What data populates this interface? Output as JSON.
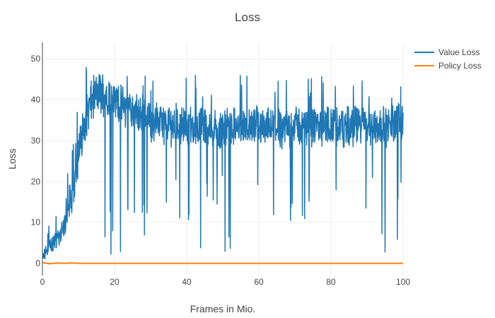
{
  "chart_data": {
    "type": "line",
    "title": "Loss",
    "xlabel": "Frames in Mio.",
    "ylabel": "Loss",
    "xlim": [
      0,
      100
    ],
    "ylim": [
      -3,
      54
    ],
    "xticks": [
      0,
      20,
      40,
      60,
      80,
      100
    ],
    "yticks": [
      0,
      10,
      20,
      30,
      40,
      50
    ],
    "grid": true,
    "legend_position": "top-right",
    "series": [
      {
        "name": "Value Loss",
        "color": "#1f77b4",
        "x": [
          0,
          1,
          2,
          3,
          4,
          5,
          6,
          7,
          8,
          9,
          10,
          11,
          12,
          13,
          14,
          15,
          16,
          17,
          18,
          19,
          20,
          21,
          22,
          23,
          24,
          25,
          26,
          27,
          28,
          29,
          30,
          32,
          34,
          36,
          38,
          40,
          42,
          44,
          46,
          48,
          50,
          52,
          54,
          56,
          58,
          60,
          62,
          64,
          66,
          68,
          70,
          72,
          74,
          76,
          78,
          80,
          82,
          84,
          86,
          88,
          90,
          92,
          94,
          96,
          98,
          100
        ],
        "y": [
          1,
          3,
          4,
          5,
          6,
          7,
          9,
          12,
          15,
          20,
          26,
          32,
          35,
          38,
          40,
          41,
          42,
          42,
          41,
          41,
          40,
          40,
          39,
          38,
          38,
          37,
          37,
          36,
          36,
          35,
          35,
          35,
          34,
          34,
          34,
          34,
          33,
          33,
          33,
          33,
          33,
          33,
          33,
          33,
          33,
          34,
          33,
          33,
          33,
          33,
          34,
          33,
          33,
          33,
          33,
          34,
          33,
          33,
          33,
          34,
          33,
          34,
          33,
          33,
          34,
          35
        ],
        "y_band_low": [
          0,
          2,
          3,
          3,
          4,
          5,
          6,
          8,
          10,
          14,
          18,
          24,
          28,
          31,
          33,
          34,
          34,
          34,
          34,
          33,
          33,
          33,
          32,
          31,
          31,
          30,
          30,
          29,
          29,
          29,
          28,
          28,
          27,
          27,
          27,
          27,
          27,
          27,
          27,
          26,
          26,
          27,
          27,
          27,
          27,
          27,
          27,
          27,
          26,
          27,
          27,
          27,
          27,
          27,
          27,
          27,
          27,
          26,
          27,
          27,
          27,
          27,
          27,
          27,
          27,
          28
        ],
        "y_band_high": [
          2,
          5,
          6,
          7,
          8,
          10,
          12,
          16,
          20,
          27,
          34,
          40,
          44,
          46,
          48,
          48,
          49,
          48,
          48,
          47,
          46,
          46,
          45,
          45,
          44,
          44,
          43,
          43,
          43,
          42,
          42,
          41,
          41,
          41,
          41,
          40,
          40,
          40,
          40,
          40,
          40,
          40,
          40,
          40,
          40,
          41,
          40,
          40,
          40,
          40,
          41,
          40,
          40,
          40,
          40,
          41,
          40,
          40,
          40,
          41,
          40,
          41,
          40,
          40,
          41,
          42
        ]
      },
      {
        "name": "Policy Loss",
        "color": "#ff7f0e",
        "x": [
          0,
          2,
          4,
          6,
          8,
          10,
          20,
          30,
          40,
          50,
          60,
          70,
          80,
          90,
          100
        ],
        "y": [
          0.2,
          -0.1,
          0.1,
          0.0,
          0.1,
          0.0,
          0.0,
          0.0,
          0.0,
          0.0,
          0.0,
          0.0,
          0.0,
          0.0,
          0.0
        ]
      }
    ]
  }
}
